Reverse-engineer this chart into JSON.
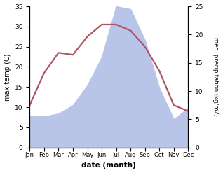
{
  "months": [
    "Jan",
    "Feb",
    "Mar",
    "Apr",
    "May",
    "Jun",
    "Jul",
    "Aug",
    "Sep",
    "Oct",
    "Nov",
    "Dec"
  ],
  "month_positions": [
    0,
    1,
    2,
    3,
    4,
    5,
    6,
    7,
    8,
    9,
    10,
    11
  ],
  "temperature": [
    10.5,
    18.5,
    23.5,
    23.0,
    27.5,
    30.5,
    30.5,
    29.0,
    25.0,
    19.0,
    10.5,
    9.0
  ],
  "precipitation": [
    5.5,
    5.5,
    6.0,
    7.5,
    11.0,
    16.0,
    25.0,
    24.5,
    19.0,
    10.5,
    5.0,
    7.0
  ],
  "temp_color": "#b05565",
  "precip_color": "#b8c4e8",
  "ylim_temp": [
    0,
    35
  ],
  "ylim_precip": [
    0,
    25
  ],
  "ylabel_left": "max temp (C)",
  "ylabel_right": "med. precipitation (kg/m2)",
  "xlabel": "date (month)",
  "yticks_left": [
    0,
    5,
    10,
    15,
    20,
    25,
    30,
    35
  ],
  "yticks_right": [
    0,
    5,
    10,
    15,
    20,
    25
  ],
  "background_color": "#ffffff"
}
